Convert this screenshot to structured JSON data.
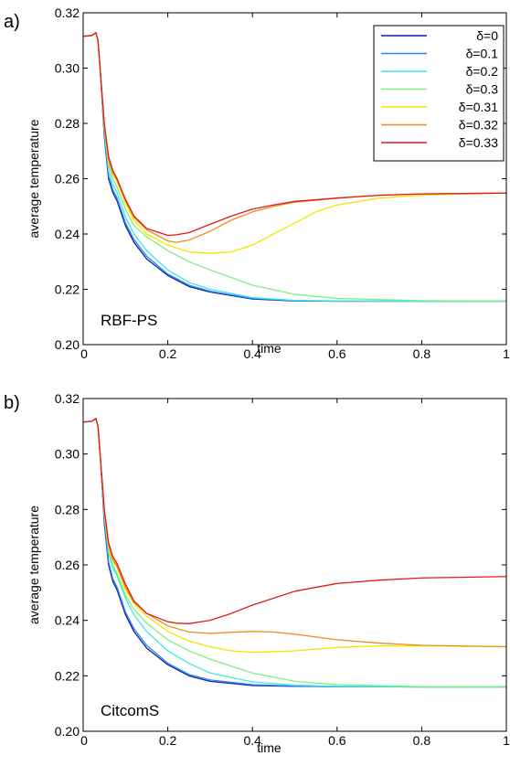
{
  "chart_data": [
    {
      "panel_label": "a)",
      "type": "line",
      "xlabel": "time",
      "ylabel": "average temperature",
      "annotation": "RBF-PS",
      "xlim": [
        0,
        1
      ],
      "ylim": [
        0.2,
        0.32
      ],
      "xticks": [
        "0",
        "0.2",
        "0.4",
        "0.6",
        "0.8",
        "1"
      ],
      "yticks": [
        "0.20",
        "0.22",
        "0.24",
        "0.26",
        "0.28",
        "0.30",
        "0.32"
      ],
      "legend_position": "top-right",
      "series": [
        {
          "name": "δ=0",
          "color": "#0a1fb3",
          "x": [
            0,
            0.02,
            0.03,
            0.035,
            0.04,
            0.05,
            0.06,
            0.07,
            0.08,
            0.1,
            0.12,
            0.15,
            0.2,
            0.25,
            0.3,
            0.4,
            0.5,
            0.6,
            0.8,
            1.0
          ],
          "y": [
            0.3115,
            0.3118,
            0.3128,
            0.31,
            0.3,
            0.275,
            0.26,
            0.255,
            0.252,
            0.243,
            0.237,
            0.231,
            0.225,
            0.221,
            0.219,
            0.2165,
            0.2158,
            0.2157,
            0.2157,
            0.2157
          ]
        },
        {
          "name": "δ=0.1",
          "color": "#2a86e8",
          "x": [
            0,
            0.02,
            0.03,
            0.035,
            0.04,
            0.05,
            0.06,
            0.07,
            0.08,
            0.1,
            0.12,
            0.15,
            0.2,
            0.25,
            0.3,
            0.4,
            0.5,
            0.6,
            0.8,
            1.0
          ],
          "y": [
            0.3115,
            0.3118,
            0.3128,
            0.31,
            0.3,
            0.276,
            0.261,
            0.256,
            0.253,
            0.244,
            0.238,
            0.232,
            0.2255,
            0.2215,
            0.2193,
            0.2167,
            0.2159,
            0.2157,
            0.2157,
            0.2157
          ]
        },
        {
          "name": "δ=0.2",
          "color": "#3fe6e6",
          "x": [
            0,
            0.02,
            0.03,
            0.035,
            0.04,
            0.05,
            0.06,
            0.07,
            0.08,
            0.1,
            0.12,
            0.15,
            0.2,
            0.25,
            0.3,
            0.4,
            0.5,
            0.6,
            0.8,
            1.0
          ],
          "y": [
            0.3115,
            0.3118,
            0.3128,
            0.31,
            0.3,
            0.277,
            0.263,
            0.258,
            0.255,
            0.246,
            0.24,
            0.234,
            0.227,
            0.2225,
            0.22,
            0.217,
            0.216,
            0.2158,
            0.2157,
            0.2157
          ]
        },
        {
          "name": "δ=0.3",
          "color": "#7ef07e",
          "x": [
            0,
            0.02,
            0.03,
            0.035,
            0.04,
            0.05,
            0.06,
            0.07,
            0.08,
            0.1,
            0.12,
            0.15,
            0.2,
            0.25,
            0.3,
            0.4,
            0.5,
            0.6,
            0.8,
            1.0
          ],
          "y": [
            0.3115,
            0.3118,
            0.3128,
            0.31,
            0.3,
            0.278,
            0.265,
            0.26,
            0.257,
            0.249,
            0.243,
            0.239,
            0.234,
            0.23,
            0.227,
            0.2215,
            0.2182,
            0.2167,
            0.2159,
            0.2157
          ]
        },
        {
          "name": "δ=0.31",
          "color": "#f2e600",
          "x": [
            0,
            0.02,
            0.03,
            0.035,
            0.04,
            0.05,
            0.06,
            0.07,
            0.08,
            0.1,
            0.12,
            0.15,
            0.2,
            0.25,
            0.3,
            0.35,
            0.4,
            0.45,
            0.5,
            0.55,
            0.6,
            0.7,
            0.8,
            0.9,
            1.0
          ],
          "y": [
            0.3115,
            0.3118,
            0.3128,
            0.31,
            0.3,
            0.279,
            0.266,
            0.2615,
            0.259,
            0.251,
            0.245,
            0.24,
            0.236,
            0.2335,
            0.233,
            0.2335,
            0.236,
            0.24,
            0.244,
            0.248,
            0.2505,
            0.253,
            0.254,
            0.2545,
            0.2548
          ]
        },
        {
          "name": "δ=0.32",
          "color": "#f08c1e",
          "x": [
            0,
            0.02,
            0.03,
            0.035,
            0.04,
            0.05,
            0.06,
            0.07,
            0.08,
            0.1,
            0.12,
            0.15,
            0.2,
            0.22,
            0.25,
            0.3,
            0.35,
            0.4,
            0.45,
            0.5,
            0.6,
            0.7,
            0.8,
            1.0
          ],
          "y": [
            0.3115,
            0.3118,
            0.3128,
            0.31,
            0.3,
            0.279,
            0.267,
            0.262,
            0.2595,
            0.252,
            0.246,
            0.2415,
            0.2375,
            0.237,
            0.2378,
            0.241,
            0.245,
            0.248,
            0.25,
            0.2515,
            0.253,
            0.254,
            0.2545,
            0.2548
          ]
        },
        {
          "name": "δ=0.33",
          "color": "#e11a1a",
          "x": [
            0,
            0.02,
            0.03,
            0.035,
            0.04,
            0.05,
            0.06,
            0.07,
            0.08,
            0.1,
            0.12,
            0.15,
            0.2,
            0.22,
            0.25,
            0.3,
            0.35,
            0.4,
            0.45,
            0.5,
            0.6,
            0.7,
            0.8,
            1.0
          ],
          "y": [
            0.3115,
            0.3118,
            0.3128,
            0.31,
            0.3,
            0.28,
            0.268,
            0.263,
            0.26,
            0.2525,
            0.2465,
            0.242,
            0.2395,
            0.2397,
            0.2405,
            0.2435,
            0.2465,
            0.249,
            0.2505,
            0.2518,
            0.253,
            0.254,
            0.2545,
            0.2548
          ]
        }
      ]
    },
    {
      "panel_label": "b)",
      "type": "line",
      "xlabel": "time",
      "ylabel": "average temperature",
      "annotation": "CitcomS",
      "xlim": [
        0,
        1
      ],
      "ylim": [
        0.2,
        0.32
      ],
      "xticks": [
        "0",
        "0.2",
        "0.4",
        "0.6",
        "0.8",
        "1"
      ],
      "yticks": [
        "0.20",
        "0.22",
        "0.24",
        "0.26",
        "0.28",
        "0.30",
        "0.32"
      ],
      "series": [
        {
          "name": "δ=0",
          "color": "#0a1fb3",
          "x": [
            0,
            0.02,
            0.03,
            0.035,
            0.04,
            0.05,
            0.06,
            0.07,
            0.08,
            0.1,
            0.12,
            0.15,
            0.2,
            0.25,
            0.3,
            0.4,
            0.5,
            0.6,
            0.8,
            1.0
          ],
          "y": [
            0.3115,
            0.3118,
            0.3128,
            0.31,
            0.3,
            0.275,
            0.26,
            0.254,
            0.251,
            0.242,
            0.236,
            0.23,
            0.224,
            0.22,
            0.218,
            0.2165,
            0.2162,
            0.2161,
            0.216,
            0.216
          ]
        },
        {
          "name": "δ=0.1",
          "color": "#2a86e8",
          "x": [
            0,
            0.02,
            0.03,
            0.035,
            0.04,
            0.05,
            0.06,
            0.07,
            0.08,
            0.1,
            0.12,
            0.15,
            0.2,
            0.25,
            0.3,
            0.4,
            0.5,
            0.6,
            0.8,
            1.0
          ],
          "y": [
            0.3115,
            0.3118,
            0.3128,
            0.31,
            0.3,
            0.276,
            0.261,
            0.255,
            0.252,
            0.243,
            0.237,
            0.231,
            0.2245,
            0.2205,
            0.2185,
            0.2168,
            0.2163,
            0.2161,
            0.216,
            0.216
          ]
        },
        {
          "name": "δ=0.2",
          "color": "#3fe6e6",
          "x": [
            0,
            0.02,
            0.03,
            0.035,
            0.04,
            0.05,
            0.06,
            0.07,
            0.08,
            0.1,
            0.12,
            0.15,
            0.2,
            0.25,
            0.3,
            0.4,
            0.5,
            0.6,
            0.8,
            1.0
          ],
          "y": [
            0.3115,
            0.3118,
            0.3128,
            0.31,
            0.3,
            0.278,
            0.264,
            0.259,
            0.256,
            0.248,
            0.242,
            0.236,
            0.229,
            0.2245,
            0.221,
            0.2178,
            0.2166,
            0.2162,
            0.216,
            0.216
          ]
        },
        {
          "name": "δ=0.3",
          "color": "#7ef07e",
          "x": [
            0,
            0.02,
            0.03,
            0.035,
            0.04,
            0.05,
            0.06,
            0.07,
            0.08,
            0.1,
            0.12,
            0.15,
            0.2,
            0.25,
            0.3,
            0.4,
            0.5,
            0.6,
            0.8,
            1.0
          ],
          "y": [
            0.3115,
            0.3118,
            0.3128,
            0.31,
            0.3,
            0.279,
            0.265,
            0.26,
            0.257,
            0.249,
            0.244,
            0.239,
            0.233,
            0.229,
            0.226,
            0.221,
            0.218,
            0.2168,
            0.2161,
            0.216
          ]
        },
        {
          "name": "δ=0.31",
          "color": "#f2e600",
          "x": [
            0,
            0.02,
            0.03,
            0.035,
            0.04,
            0.05,
            0.06,
            0.07,
            0.08,
            0.1,
            0.12,
            0.15,
            0.2,
            0.25,
            0.3,
            0.35,
            0.4,
            0.45,
            0.5,
            0.6,
            0.7,
            0.8,
            1.0
          ],
          "y": [
            0.3115,
            0.3118,
            0.3128,
            0.31,
            0.3,
            0.279,
            0.266,
            0.2615,
            0.259,
            0.251,
            0.246,
            0.2415,
            0.236,
            0.2325,
            0.2305,
            0.229,
            0.2285,
            0.2287,
            0.229,
            0.2302,
            0.2308,
            0.2308,
            0.2305
          ]
        },
        {
          "name": "δ=0.32",
          "color": "#f08c1e",
          "x": [
            0,
            0.02,
            0.03,
            0.035,
            0.04,
            0.05,
            0.06,
            0.07,
            0.08,
            0.1,
            0.12,
            0.15,
            0.2,
            0.25,
            0.3,
            0.35,
            0.4,
            0.45,
            0.5,
            0.6,
            0.7,
            0.8,
            1.0
          ],
          "y": [
            0.3115,
            0.3118,
            0.3128,
            0.31,
            0.3,
            0.28,
            0.267,
            0.262,
            0.2595,
            0.252,
            0.2465,
            0.2425,
            0.238,
            0.2358,
            0.2353,
            0.2357,
            0.236,
            0.2358,
            0.235,
            0.233,
            0.2318,
            0.231,
            0.2305
          ]
        },
        {
          "name": "δ=0.33",
          "color": "#e11a1a",
          "x": [
            0,
            0.02,
            0.03,
            0.035,
            0.04,
            0.05,
            0.06,
            0.07,
            0.08,
            0.1,
            0.12,
            0.15,
            0.2,
            0.22,
            0.25,
            0.3,
            0.35,
            0.4,
            0.45,
            0.5,
            0.6,
            0.7,
            0.8,
            1.0
          ],
          "y": [
            0.3115,
            0.3118,
            0.3128,
            0.31,
            0.3,
            0.28,
            0.268,
            0.263,
            0.2605,
            0.253,
            0.247,
            0.2425,
            0.2395,
            0.239,
            0.2388,
            0.24,
            0.2425,
            0.2455,
            0.248,
            0.2505,
            0.2533,
            0.2545,
            0.2553,
            0.2558
          ]
        }
      ]
    }
  ]
}
